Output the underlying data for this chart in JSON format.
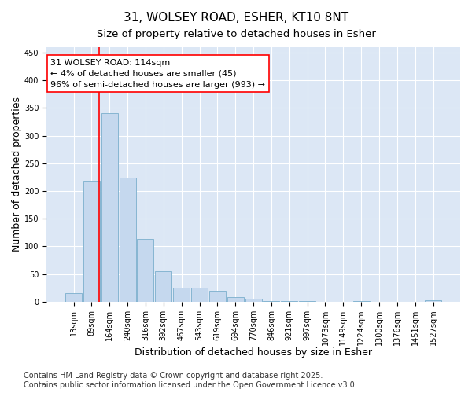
{
  "title1": "31, WOLSEY ROAD, ESHER, KT10 8NT",
  "title2": "Size of property relative to detached houses in Esher",
  "xlabel": "Distribution of detached houses by size in Esher",
  "ylabel": "Number of detached properties",
  "categories": [
    "13sqm",
    "89sqm",
    "164sqm",
    "240sqm",
    "316sqm",
    "392sqm",
    "467sqm",
    "543sqm",
    "619sqm",
    "694sqm",
    "770sqm",
    "846sqm",
    "921sqm",
    "997sqm",
    "1073sqm",
    "1149sqm",
    "1224sqm",
    "1300sqm",
    "1376sqm",
    "1451sqm",
    "1527sqm"
  ],
  "values": [
    16,
    218,
    340,
    224,
    113,
    55,
    26,
    26,
    19,
    8,
    6,
    1,
    1,
    1,
    0,
    0,
    1,
    0,
    0,
    0,
    2
  ],
  "bar_color": "#c5d8ee",
  "bar_edge_color": "#7aaecc",
  "vline_color": "red",
  "vline_pos": 1.42,
  "annotation_line1": "31 WOLSEY ROAD: 114sqm",
  "annotation_line2": "← 4% of detached houses are smaller (45)",
  "annotation_line3": "96% of semi-detached houses are larger (993) →",
  "annotation_box_color": "white",
  "annotation_border_color": "red",
  "ylim": [
    0,
    460
  ],
  "yticks": [
    0,
    50,
    100,
    150,
    200,
    250,
    300,
    350,
    400,
    450
  ],
  "bg_color": "#ffffff",
  "plot_bg_color": "#dce7f5",
  "grid_color": "#ffffff",
  "footer1": "Contains HM Land Registry data © Crown copyright and database right 2025.",
  "footer2": "Contains public sector information licensed under the Open Government Licence v3.0.",
  "title_fontsize": 11,
  "subtitle_fontsize": 9.5,
  "tick_fontsize": 7,
  "label_fontsize": 9,
  "annotation_fontsize": 8,
  "footer_fontsize": 7
}
